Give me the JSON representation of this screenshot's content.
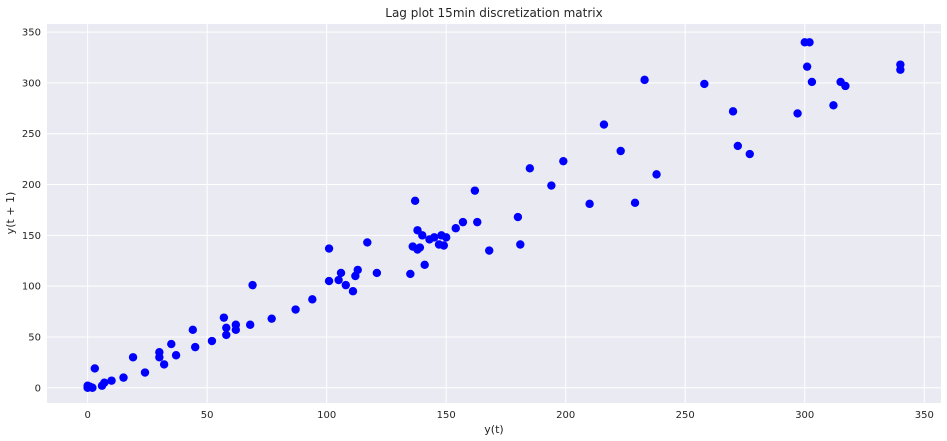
{
  "chart_data": {
    "type": "scatter",
    "title": "Lag plot 15min discretization matrix",
    "xlabel": "y(t)",
    "ylabel": "y(t + 1)",
    "xlim": [
      -17,
      357
    ],
    "ylim": [
      -15,
      358
    ],
    "xticks": [
      0,
      50,
      100,
      150,
      200,
      250,
      300,
      350
    ],
    "yticks": [
      0,
      50,
      100,
      150,
      200,
      250,
      300,
      350
    ],
    "grid": true,
    "background_color": "#eaeaf2",
    "point_color": "#0000ff",
    "points": [
      [
        0,
        0
      ],
      [
        0,
        2
      ],
      [
        1,
        1
      ],
      [
        2,
        0
      ],
      [
        3,
        19
      ],
      [
        6,
        2
      ],
      [
        7,
        5
      ],
      [
        10,
        7
      ],
      [
        15,
        10
      ],
      [
        19,
        30
      ],
      [
        24,
        15
      ],
      [
        30,
        30
      ],
      [
        30,
        35
      ],
      [
        32,
        23
      ],
      [
        35,
        43
      ],
      [
        37,
        32
      ],
      [
        44,
        57
      ],
      [
        45,
        40
      ],
      [
        52,
        46
      ],
      [
        57,
        69
      ],
      [
        58,
        59
      ],
      [
        58,
        52
      ],
      [
        62,
        57
      ],
      [
        62,
        62
      ],
      [
        68,
        62
      ],
      [
        69,
        101
      ],
      [
        77,
        68
      ],
      [
        87,
        77
      ],
      [
        94,
        87
      ],
      [
        101,
        137
      ],
      [
        101,
        105
      ],
      [
        105,
        106
      ],
      [
        106,
        113
      ],
      [
        108,
        101
      ],
      [
        111,
        95
      ],
      [
        112,
        110
      ],
      [
        113,
        116
      ],
      [
        117,
        143
      ],
      [
        121,
        113
      ],
      [
        135,
        112
      ],
      [
        136,
        139
      ],
      [
        137,
        184
      ],
      [
        138,
        155
      ],
      [
        138,
        136
      ],
      [
        139,
        138
      ],
      [
        140,
        150
      ],
      [
        141,
        121
      ],
      [
        143,
        146
      ],
      [
        145,
        148
      ],
      [
        147,
        141
      ],
      [
        148,
        150
      ],
      [
        149,
        140
      ],
      [
        150,
        148
      ],
      [
        154,
        157
      ],
      [
        157,
        163
      ],
      [
        162,
        194
      ],
      [
        163,
        163
      ],
      [
        168,
        135
      ],
      [
        180,
        168
      ],
      [
        181,
        141
      ],
      [
        185,
        216
      ],
      [
        194,
        199
      ],
      [
        199,
        223
      ],
      [
        210,
        181
      ],
      [
        216,
        259
      ],
      [
        223,
        233
      ],
      [
        229,
        182
      ],
      [
        233,
        303
      ],
      [
        238,
        210
      ],
      [
        258,
        299
      ],
      [
        270,
        272
      ],
      [
        272,
        238
      ],
      [
        277,
        230
      ],
      [
        297,
        270
      ],
      [
        300,
        340
      ],
      [
        301,
        316
      ],
      [
        302,
        340
      ],
      [
        303,
        301
      ],
      [
        312,
        278
      ],
      [
        315,
        301
      ],
      [
        317,
        297
      ],
      [
        340,
        318
      ],
      [
        340,
        313
      ]
    ]
  }
}
